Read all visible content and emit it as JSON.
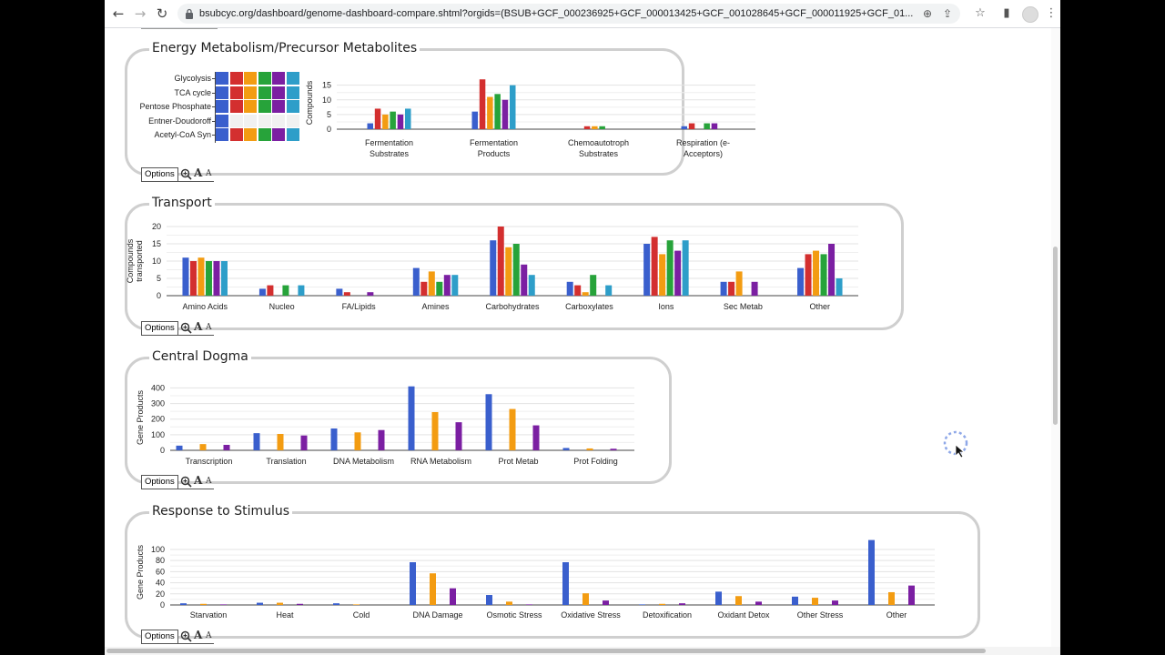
{
  "browser": {
    "url": "bsubcyc.org/dashboard/genome-dashboard-compare.shtml?orgids=(BSUB+GCF_000236925+GCF_000013425+GCF_001028645+GCF_000011925+GCF_01...",
    "icons": {
      "back": "←",
      "forward": "→",
      "reload": "↻",
      "zoom": "⊕",
      "share": "⇪",
      "bookmark": "☆",
      "side_panel": "▮",
      "menu": "⋮"
    }
  },
  "series_colors": [
    "#3a5fcd",
    "#d32f2f",
    "#f39c12",
    "#27a33a",
    "#7b1fa2",
    "#2e9ec9"
  ],
  "options": {
    "label": "Options",
    "font_big": "A",
    "font_small": "A"
  },
  "panels": {
    "energy": {
      "title": "Energy Metabolism/Precursor Metabolites",
      "grid": {
        "rows": [
          {
            "label": "Glycolysis",
            "cells": [
              true,
              true,
              true,
              true,
              true,
              true
            ]
          },
          {
            "label": "TCA cycle",
            "cells": [
              true,
              true,
              true,
              true,
              true,
              true
            ]
          },
          {
            "label": "Pentose Phosphate",
            "cells": [
              true,
              true,
              true,
              true,
              true,
              true
            ]
          },
          {
            "label": "Entner-Doudoroff",
            "cells": [
              true,
              false,
              false,
              false,
              false,
              false
            ]
          },
          {
            "label": "Acetyl-CoA Syn",
            "cells": [
              true,
              true,
              true,
              true,
              true,
              true
            ]
          }
        ]
      }
    },
    "transport": {
      "title": "Transport"
    },
    "dogma": {
      "title": "Central Dogma"
    },
    "stimulus": {
      "title": "Response to Stimulus"
    }
  },
  "chart_data": [
    {
      "type": "bar",
      "ylabel": "Compounds",
      "yticks": [
        0,
        5,
        10,
        15
      ],
      "ylim": [
        0,
        18
      ],
      "categories": [
        "Fermentation Substrates",
        "Fermentation Products",
        "Chemoautotroph Substrates",
        "Respiration (e-Acceptors)"
      ],
      "category_lines": [
        [
          "Fermentation",
          "Substrates"
        ],
        [
          "Fermentation",
          "Products"
        ],
        [
          "Chemoautotroph",
          "Substrates"
        ],
        [
          "Respiration (e-",
          "Acceptors)"
        ]
      ],
      "series": [
        {
          "values": [
            2,
            6,
            0,
            1
          ]
        },
        {
          "values": [
            7,
            17,
            1,
            2
          ]
        },
        {
          "values": [
            5,
            11,
            1,
            0
          ]
        },
        {
          "values": [
            6,
            12,
            1,
            2
          ]
        },
        {
          "values": [
            5,
            10,
            0,
            2
          ]
        },
        {
          "values": [
            7,
            15,
            0,
            0
          ]
        }
      ]
    },
    {
      "type": "bar",
      "ylabel": "Compounds transported",
      "ylabel_lines": [
        "Compounds",
        "transported"
      ],
      "yticks": [
        0,
        5,
        10,
        15,
        20
      ],
      "ylim": [
        0,
        20
      ],
      "categories": [
        "Amino Acids",
        "Nucleo",
        "FA/Lipids",
        "Amines",
        "Carbohydrates",
        "Carboxylates",
        "Ions",
        "Sec Metab",
        "Other"
      ],
      "series": [
        {
          "values": [
            11,
            2,
            2,
            8,
            16,
            4,
            15,
            4,
            8
          ]
        },
        {
          "values": [
            10,
            3,
            1,
            4,
            20,
            3,
            17,
            4,
            12
          ]
        },
        {
          "values": [
            11,
            0,
            0,
            7,
            14,
            1,
            12,
            7,
            13
          ]
        },
        {
          "values": [
            10,
            3,
            0,
            4,
            15,
            6,
            16,
            0,
            12
          ]
        },
        {
          "values": [
            10,
            0,
            1,
            6,
            9,
            0,
            13,
            4,
            15
          ]
        },
        {
          "values": [
            10,
            3,
            0,
            6,
            6,
            3,
            16,
            0,
            5
          ]
        }
      ]
    },
    {
      "type": "bar",
      "ylabel": "Gene Products",
      "yticks": [
        0,
        100,
        200,
        300,
        400
      ],
      "ylim": [
        0,
        420
      ],
      "categories": [
        "Transcription",
        "Translation",
        "DNA Metabolism",
        "RNA Metabolism",
        "Prot Metab",
        "Prot Folding"
      ],
      "series": [
        {
          "values": [
            30,
            110,
            140,
            410,
            360,
            15
          ]
        },
        {
          "values": [
            0,
            0,
            0,
            0,
            0,
            0
          ]
        },
        {
          "values": [
            40,
            105,
            115,
            245,
            265,
            12
          ]
        },
        {
          "values": [
            0,
            0,
            0,
            0,
            0,
            0
          ]
        },
        {
          "values": [
            35,
            95,
            130,
            180,
            160,
            10
          ]
        },
        {
          "values": [
            0,
            0,
            0,
            0,
            0,
            0
          ]
        }
      ]
    },
    {
      "type": "bar",
      "ylabel": "Gene Products",
      "yticks": [
        0,
        20,
        40,
        60,
        80,
        100
      ],
      "ylim": [
        0,
        118
      ],
      "categories": [
        "Starvation",
        "Heat",
        "Cold",
        "DNA Damage",
        "Osmotic Stress",
        "Oxidative Stress",
        "Detoxification",
        "Oxidant Detox",
        "Other Stress",
        "Other"
      ],
      "series": [
        {
          "values": [
            3,
            4,
            3,
            77,
            18,
            77,
            1,
            24,
            15,
            117
          ]
        },
        {
          "values": [
            0,
            0,
            0,
            0,
            0,
            0,
            0,
            0,
            0,
            0
          ]
        },
        {
          "values": [
            2,
            4,
            1,
            57,
            6,
            21,
            2,
            16,
            13,
            23
          ]
        },
        {
          "values": [
            0,
            0,
            0,
            0,
            0,
            0,
            0,
            0,
            0,
            0
          ]
        },
        {
          "values": [
            1,
            2,
            0,
            30,
            1,
            8,
            3,
            6,
            8,
            35
          ]
        },
        {
          "values": [
            0,
            0,
            0,
            0,
            0,
            0,
            0,
            0,
            0,
            0
          ]
        }
      ]
    }
  ]
}
